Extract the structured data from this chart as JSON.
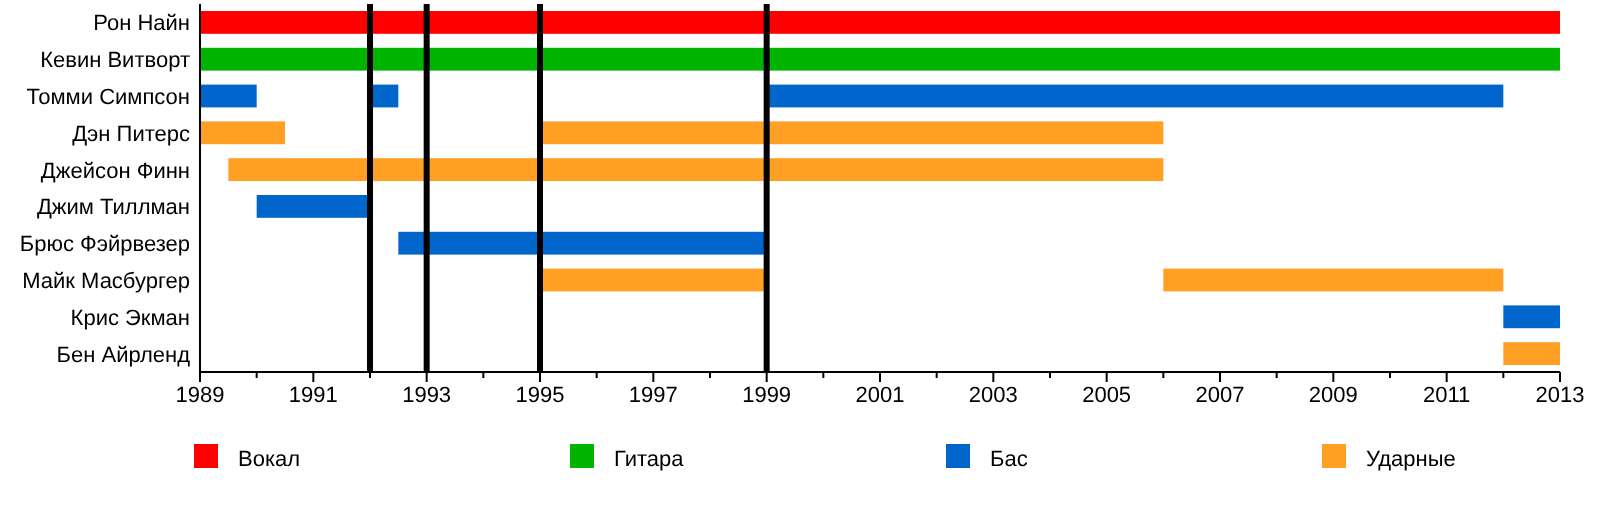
{
  "chart_data": {
    "type": "bar",
    "orientation": "horizontal",
    "categories": [
      "Рон Найн",
      "Кевин Витворт",
      "Томми Симпсон",
      "Дэн Питерс",
      "Джейсон Финн",
      "Джим Тиллман",
      "Брюс Фэйрвезер",
      "Майк Масбургер",
      "Крис Экман",
      "Бен Айрленд"
    ],
    "series": [
      {
        "name": "Вокал",
        "color": "#ff0000",
        "base": [
          1989,
          null,
          null,
          null,
          null,
          null,
          null,
          null,
          null,
          null
        ],
        "values": [
          24,
          null,
          null,
          null,
          null,
          null,
          null,
          null,
          null,
          null
        ]
      },
      {
        "name": "Гитара",
        "color": "#00b400",
        "base": [
          null,
          1989,
          null,
          null,
          null,
          null,
          null,
          null,
          null,
          null
        ],
        "values": [
          null,
          24,
          null,
          null,
          null,
          null,
          null,
          null,
          null,
          null
        ]
      },
      {
        "name": "Бас",
        "color": "#0066cc",
        "base": [
          null,
          null,
          1989,
          null,
          null,
          1990,
          1992.5,
          null,
          2012,
          null
        ],
        "values": [
          null,
          null,
          1,
          null,
          null,
          2,
          6.5,
          null,
          1,
          null
        ]
      },
      {
        "color": "#0066cc",
        "base": [
          null,
          null,
          1992,
          null,
          null,
          null,
          null,
          null,
          null,
          null
        ],
        "values": [
          null,
          null,
          0.5,
          null,
          null,
          null,
          null,
          null,
          null,
          null
        ]
      },
      {
        "color": "#0066cc",
        "base": [
          null,
          null,
          1999,
          null,
          null,
          null,
          null,
          null,
          null,
          null
        ],
        "values": [
          null,
          null,
          13,
          null,
          null,
          null,
          null,
          null,
          null,
          null
        ]
      },
      {
        "name": "Ударные",
        "color": "#ff9f24",
        "base": [
          null,
          null,
          null,
          1989,
          1989.5,
          null,
          null,
          1995,
          null,
          2012
        ],
        "values": [
          null,
          null,
          null,
          1.5,
          16.5,
          null,
          null,
          4,
          null,
          1
        ]
      },
      {
        "color": "#ff9f24",
        "base": [
          null,
          null,
          null,
          1995,
          null,
          null,
          null,
          2006,
          null,
          null
        ],
        "values": [
          null,
          null,
          null,
          11,
          null,
          null,
          null,
          6,
          null,
          null
        ]
      }
    ],
    "xlim": [
      1989,
      2013
    ],
    "xticks": [
      1989,
      {
        "value": 1990,
        "label": null
      },
      1991,
      {
        "value": 1992,
        "label": null
      },
      1993,
      {
        "value": 1994,
        "label": null
      },
      1995,
      {
        "value": 1996,
        "label": null
      },
      1997,
      {
        "value": 1998,
        "label": null
      },
      1999,
      {
        "value": 2000,
        "label": null
      },
      2001,
      {
        "value": 2002,
        "label": null
      },
      2003,
      {
        "value": 2004,
        "label": null
      },
      2005,
      {
        "value": 2006,
        "label": null
      },
      2007,
      {
        "value": 2008,
        "label": null
      },
      2009,
      {
        "value": 2010,
        "label": null
      },
      2011,
      {
        "value": 2012,
        "label": null
      },
      2013
    ],
    "ref_lines": [
      {
        "axis": "x",
        "value": 1992,
        "color": "#000000"
      },
      {
        "axis": "x",
        "value": 1993,
        "color": "#000000"
      },
      {
        "axis": "x",
        "value": 1995,
        "color": "#000000"
      },
      {
        "axis": "x",
        "value": 1999,
        "color": "#000000"
      }
    ],
    "grid": false,
    "legend": "bottom"
  }
}
